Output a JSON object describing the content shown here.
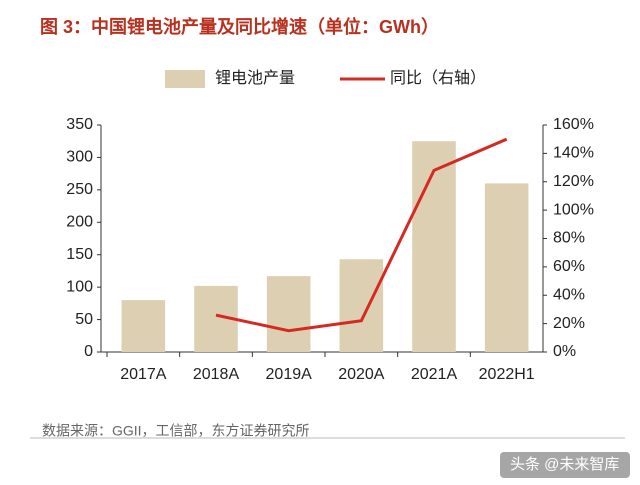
{
  "chart_data": {
    "type": "bar",
    "title": "图 3：中国锂电池产量及同比增速（单位：GWh）",
    "source": "数据来源：GGII，工信部，东方证券研究所",
    "watermark": "头条 @未来智库",
    "categories": [
      "2017A",
      "2018A",
      "2019A",
      "2020A",
      "2021A",
      "2022H1"
    ],
    "series": [
      {
        "name": "锂电池产量",
        "type": "bar",
        "color": "#ddd0b2",
        "values": [
          80,
          102,
          117,
          143,
          325,
          260
        ]
      },
      {
        "name": "同比（右轴）",
        "type": "line",
        "axis": "y2",
        "color": "#d42a23",
        "values": [
          null,
          26,
          15,
          22,
          128,
          150
        ]
      }
    ],
    "ylim": [
      0,
      350
    ],
    "yticks": [
      0,
      50,
      100,
      150,
      200,
      250,
      300,
      350
    ],
    "y2lim": [
      0,
      160
    ],
    "y2ticks": [
      {
        "value": 0,
        "label": "0%"
      },
      {
        "value": 20,
        "label": "20%"
      },
      {
        "value": 40,
        "label": "40%"
      },
      {
        "value": 60,
        "label": "60%"
      },
      {
        "value": 80,
        "label": "80%"
      },
      {
        "value": 100,
        "label": "100%"
      },
      {
        "value": 120,
        "label": "120%"
      },
      {
        "value": 140,
        "label": "140%"
      },
      {
        "value": 160,
        "label": "160%"
      }
    ],
    "legend": "top"
  }
}
